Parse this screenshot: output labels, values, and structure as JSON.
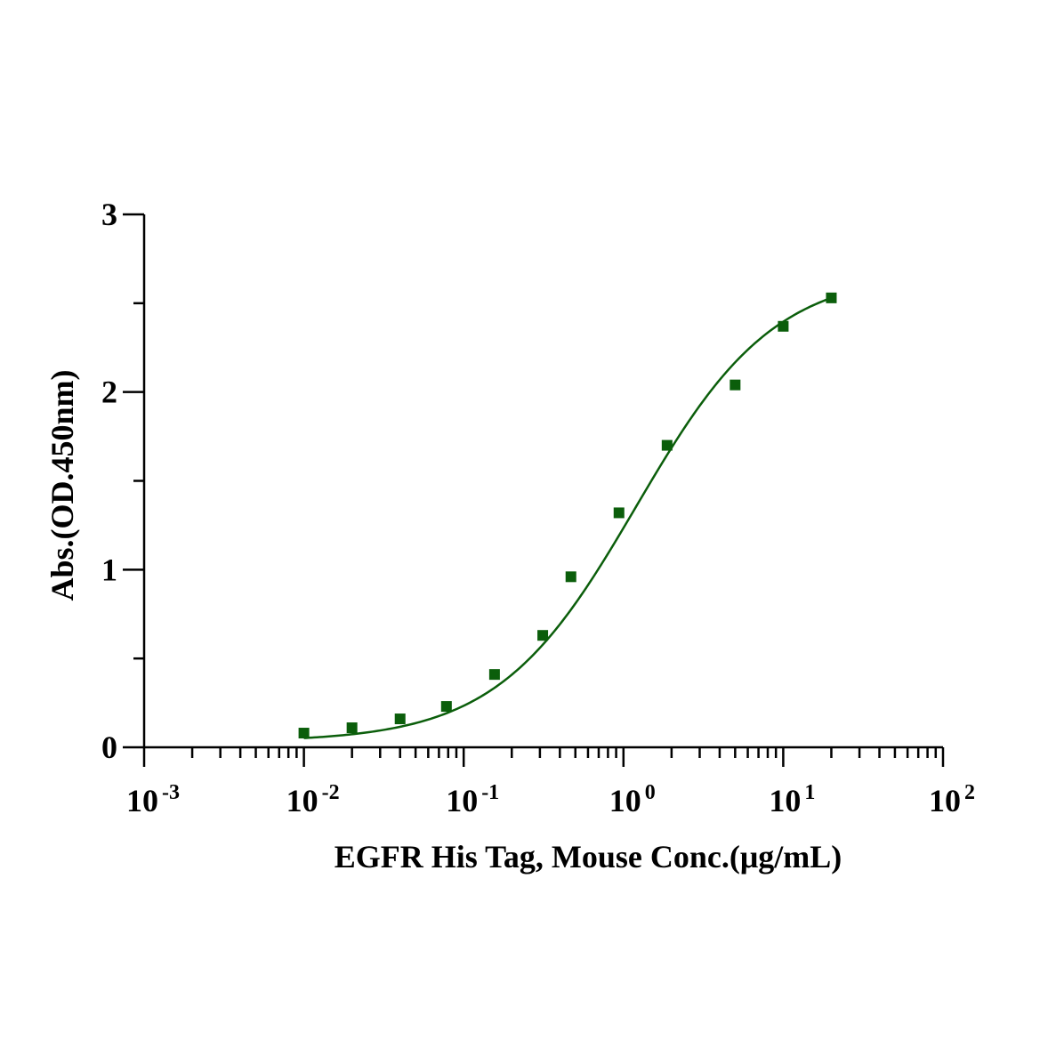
{
  "chart_data": {
    "type": "scatter",
    "xlabel": "EGFR His Tag, Mouse Conc.(μg/mL)",
    "ylabel": "Abs.(OD.450nm)",
    "xscale": "log",
    "xlim": [
      0.001,
      100
    ],
    "ylim": [
      0,
      3
    ],
    "y_major_ticks": [
      0,
      1,
      2,
      3
    ],
    "y_minor_ticks": [
      0.5,
      1.5,
      2.5
    ],
    "x_major_ticks": [
      {
        "value": 0.001,
        "base": "10",
        "exp": "-3"
      },
      {
        "value": 0.01,
        "base": "10",
        "exp": "-2"
      },
      {
        "value": 0.1,
        "base": "10",
        "exp": "-1"
      },
      {
        "value": 1,
        "base": "10",
        "exp": "0"
      },
      {
        "value": 10,
        "base": "10",
        "exp": "1"
      },
      {
        "value": 100,
        "base": "10",
        "exp": "2"
      }
    ],
    "grid": false,
    "legend": "none",
    "series": [
      {
        "color": "#0b5e0b",
        "marker": "square",
        "x": [
          0.01,
          0.02,
          0.04,
          0.078,
          0.156,
          0.3125,
          0.469,
          0.9375,
          1.875,
          5,
          10,
          20
        ],
        "y": [
          0.08,
          0.11,
          0.16,
          0.23,
          0.41,
          0.63,
          0.96,
          1.32,
          1.7,
          2.04,
          2.37,
          2.53
        ]
      }
    ],
    "fit": {
      "type": "4PL",
      "color": "#0b5e0b",
      "bottom": 0.03,
      "top": 2.68,
      "ec50": 1.2,
      "hill": 1.0,
      "x_range": [
        0.01,
        20
      ]
    }
  }
}
